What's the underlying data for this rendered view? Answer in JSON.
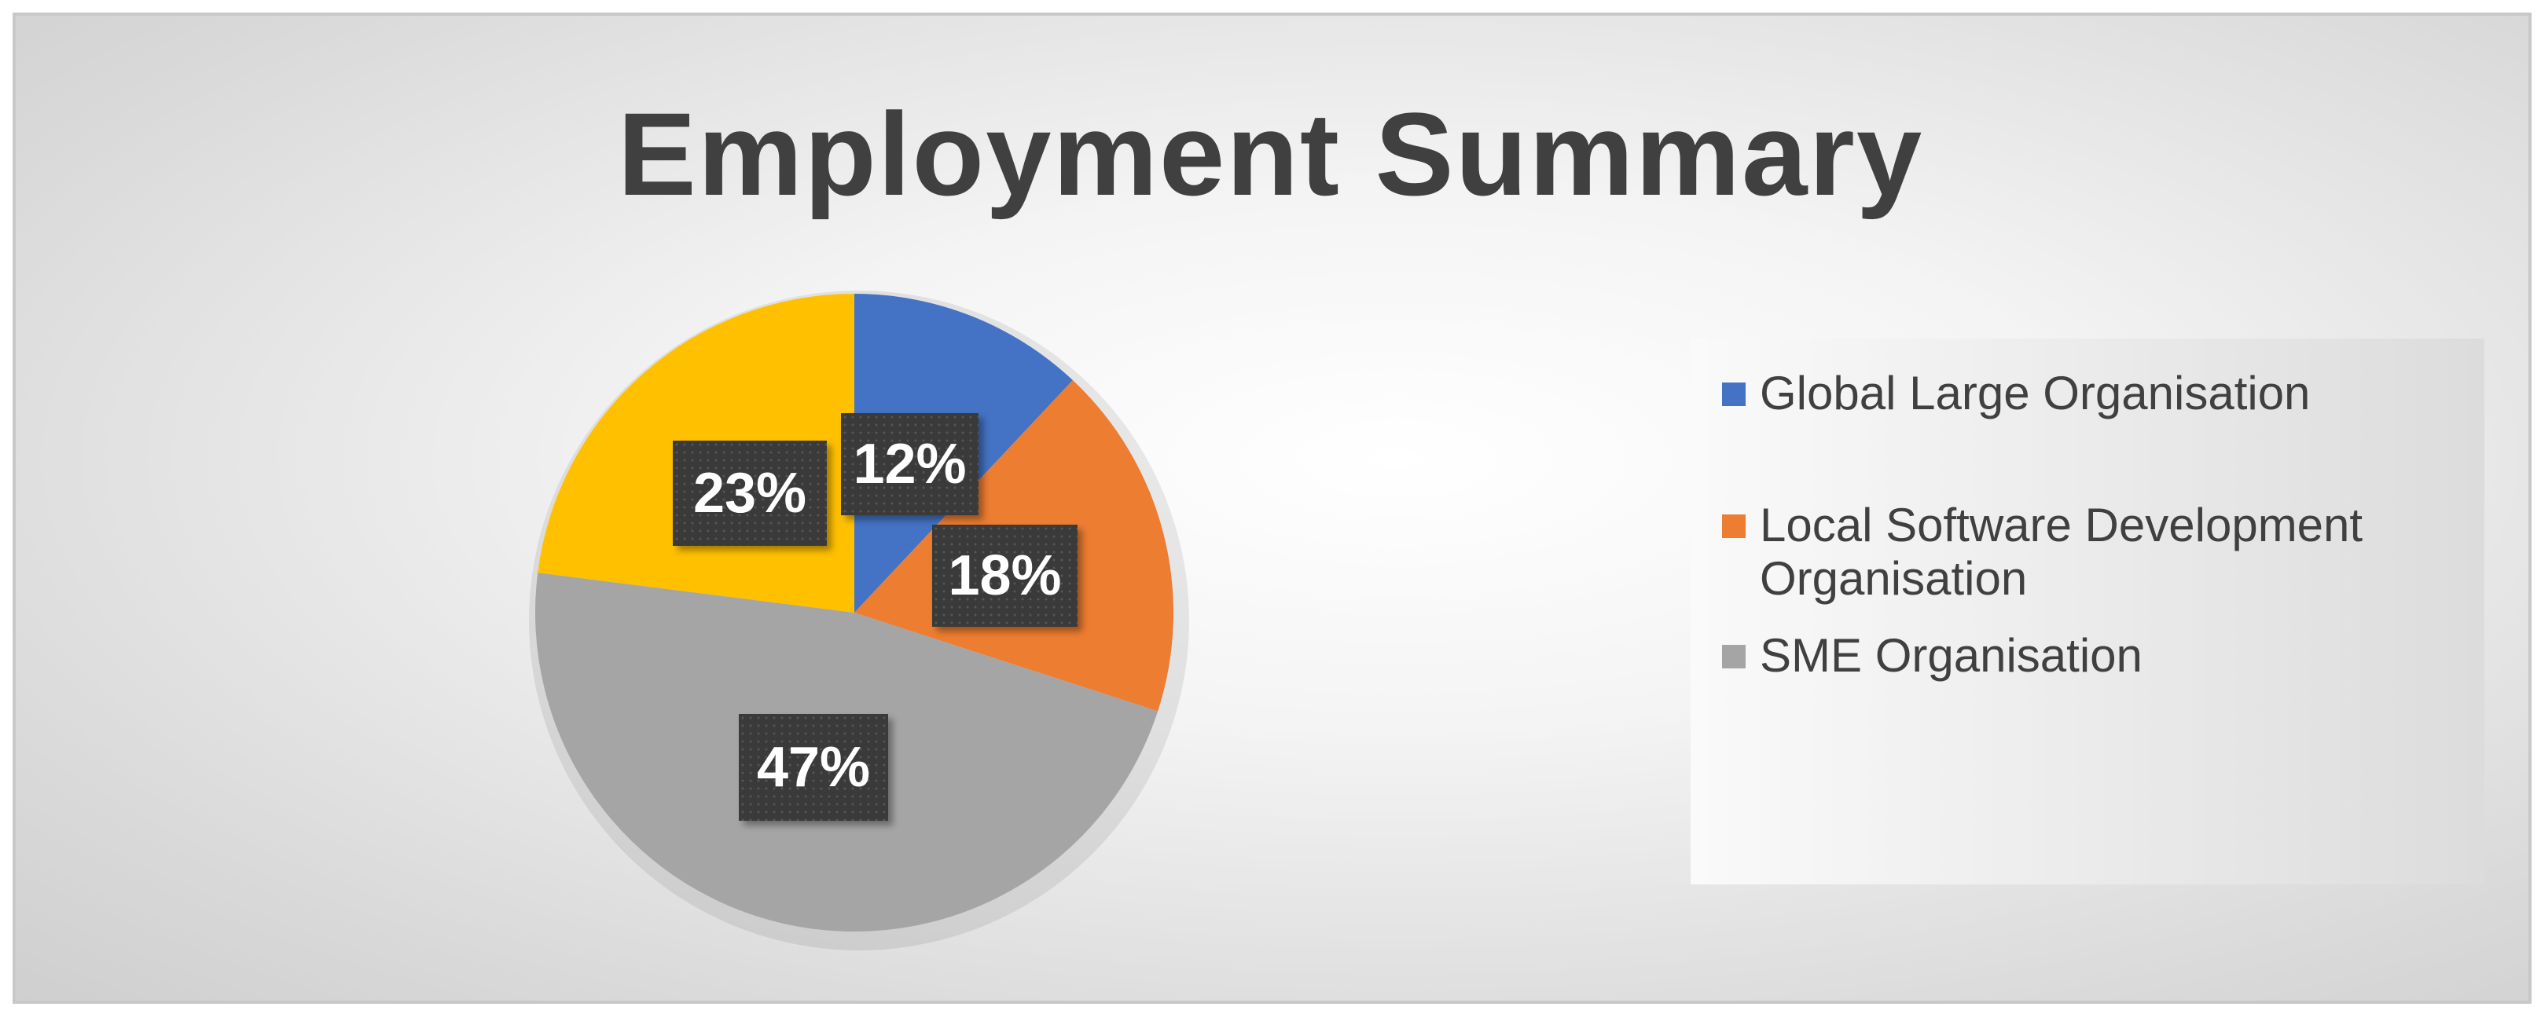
{
  "chart_data": {
    "type": "pie",
    "title": "Employment Summary",
    "slices": [
      {
        "name": "Global Large Organisation",
        "value": 12,
        "label": "12%",
        "color": "#4472C4"
      },
      {
        "name": "Local Software Development Organisation",
        "value": 18,
        "label": "18%",
        "color": "#ED7D31"
      },
      {
        "name": "SME Organisation",
        "value": 47,
        "label": "47%",
        "color": "#A5A5A5"
      },
      {
        "name": "",
        "value": 23,
        "label": "23%",
        "color": "#FFC000"
      }
    ],
    "legend": {
      "position": "right",
      "entries": [
        "Global Large Organisation",
        "Local Software Development Organisation",
        "SME Organisation"
      ]
    }
  }
}
